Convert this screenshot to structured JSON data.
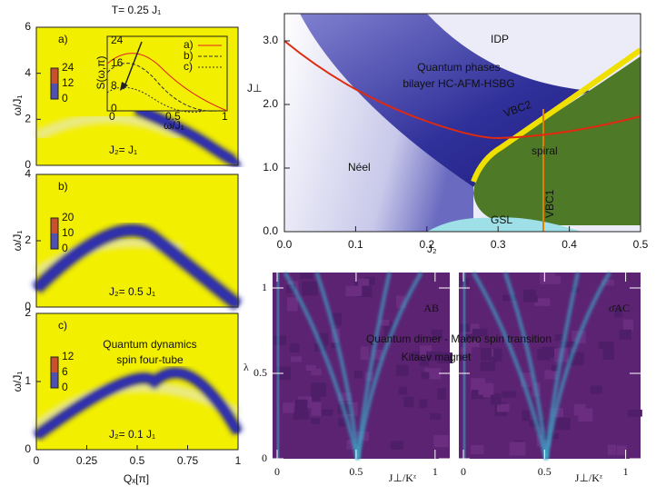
{
  "left": {
    "title": "T= 0.25 J₁",
    "xlabel": "Qₓ[π]",
    "xticks": [
      "0",
      "0.25",
      "0.5",
      "0.75",
      "1"
    ],
    "panels": [
      {
        "tag": "a)",
        "ylabel": "ω/J₁",
        "yticks": [
          "0",
          "2",
          "4",
          "6"
        ],
        "note": "J₂= J₁",
        "colorbar": [
          "24",
          "12",
          "0"
        ]
      },
      {
        "tag": "b)",
        "ylabel": "ω/J₁",
        "yticks": [
          "0",
          "2",
          "4"
        ],
        "note": "J₂= 0.5 J₁",
        "colorbar": [
          "20",
          "10",
          "0"
        ]
      },
      {
        "tag": "c)",
        "ylabel": "ω/J₁",
        "yticks": [
          "0",
          "1",
          "2"
        ],
        "note": "J₂= 0.1 J₁",
        "colorbar": [
          "12",
          "6",
          "0"
        ],
        "caption": [
          "Quantum dynamics",
          "spin four-tube"
        ]
      }
    ],
    "inset": {
      "ylabel": "S(ω,π)",
      "xlabel": "ω/J₁",
      "yticks": [
        "24",
        "16",
        "8",
        "0"
      ],
      "xticks": [
        "0",
        "0.5",
        "1"
      ],
      "legend": [
        "a)",
        "b)",
        "c)"
      ]
    }
  },
  "phase": {
    "ylabel": "J⊥",
    "xlabel": "J₂",
    "yticks": [
      "0.0",
      "1.0",
      "2.0",
      "3.0"
    ],
    "xticks": [
      "0.0",
      "0.1",
      "0.2",
      "0.3",
      "0.4",
      "0.5"
    ],
    "regions": [
      "IDP",
      "Néel",
      "spiral",
      "VBC2",
      "VBC1",
      "GSL"
    ],
    "caption": [
      "Quantum phases",
      "bilayer HC-AFM-HSBG"
    ]
  },
  "bottom": {
    "ylabel": "λ",
    "yticks": [
      "0",
      "0.5",
      "1"
    ],
    "xticks": [
      "0",
      "0.5",
      "1"
    ],
    "xlabel": "J⊥/Kᶻ",
    "panels": [
      "AB",
      "σ̄AC"
    ],
    "caption": [
      "Quantum dimer - Macro spin transition",
      "Kitaev magnet"
    ]
  }
}
